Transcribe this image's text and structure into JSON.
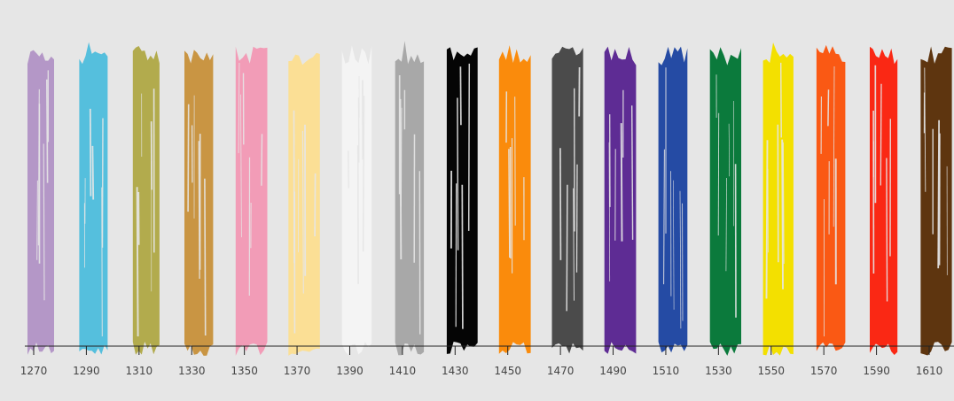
{
  "chart_data": {
    "type": "bar",
    "axis": {
      "min": 1260,
      "max": 1616,
      "ticks": [
        1270,
        1290,
        1310,
        1330,
        1350,
        1370,
        1390,
        1410,
        1430,
        1450,
        1470,
        1490,
        1510,
        1530,
        1550,
        1570,
        1590,
        1610
      ]
    },
    "grid": false,
    "legend": "none",
    "strokes": [
      {
        "x": 1270,
        "color": "#b497c7"
      },
      {
        "x": 1290,
        "color": "#55bfdd"
      },
      {
        "x": 1310,
        "color": "#b2ab4d"
      },
      {
        "x": 1330,
        "color": "#c99543"
      },
      {
        "x": 1350,
        "color": "#f29cb7"
      },
      {
        "x": 1370,
        "color": "#fbdf95"
      },
      {
        "x": 1390,
        "color": "#f4f4f4"
      },
      {
        "x": 1410,
        "color": "#a8a8a8"
      },
      {
        "x": 1430,
        "color": "#050505"
      },
      {
        "x": 1450,
        "color": "#fa8b0c"
      },
      {
        "x": 1470,
        "color": "#4b4b4b"
      },
      {
        "x": 1490,
        "color": "#5e2c94"
      },
      {
        "x": 1510,
        "color": "#254ba4"
      },
      {
        "x": 1530,
        "color": "#0b7a3c"
      },
      {
        "x": 1550,
        "color": "#f3e000"
      },
      {
        "x": 1570,
        "color": "#fa5914"
      },
      {
        "x": 1590,
        "color": "#fa2814"
      },
      {
        "x": 1610,
        "color": "#5e350f"
      }
    ]
  }
}
